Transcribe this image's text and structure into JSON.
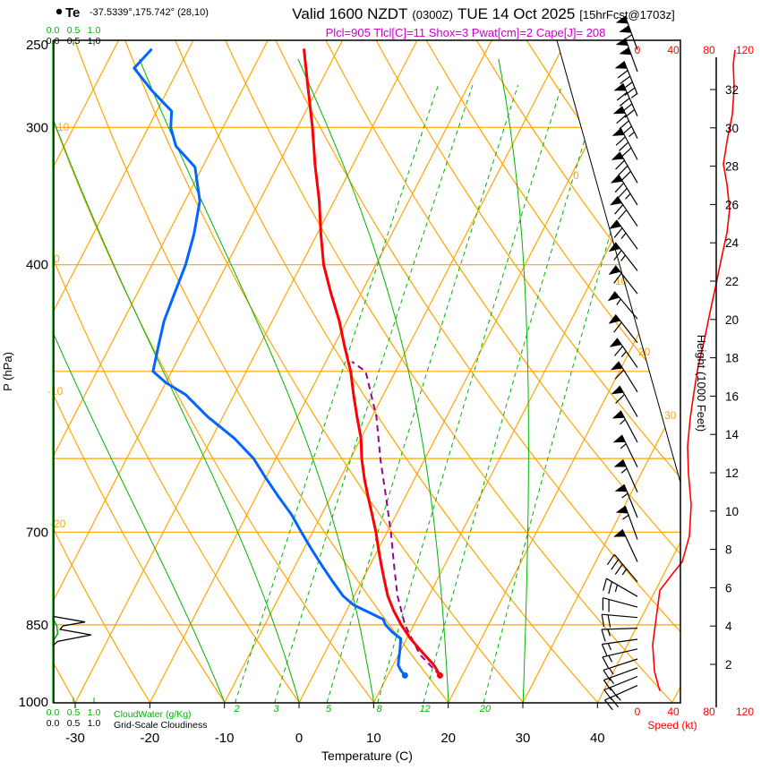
{
  "header": {
    "station": "Te",
    "coords": "-37.5339°,175.742° (28,10)",
    "title_valid": "Valid 1600 NZDT",
    "title_zulu": "(0300Z)",
    "title_date": "TUE 14 Oct 2025",
    "title_fcst": "[15hrFcst@1703z]",
    "params": "Plcl=905 Tlcl[C]=11 Shox=3 Pwat[cm]=2 Cape[J]= 208"
  },
  "colors": {
    "grid": "#FFA500",
    "moist": "#00B400",
    "temp": "#FF0000",
    "dewpoint": "#0066FF",
    "parcel": "#990099",
    "speed": "#FF0000",
    "params": "#CC00CC",
    "barb": "#000000"
  },
  "axes": {
    "pressure_label": "P (hPa)",
    "pressure_ticks": [
      "250",
      "300",
      "400",
      "700",
      "850",
      "1000"
    ],
    "pressure_grid": [
      300,
      400,
      500,
      600,
      700,
      850
    ],
    "temp_label": "Temperature (C)",
    "temp_ticks": [
      "-30",
      "-20",
      "-10",
      "0",
      "10",
      "20",
      "30",
      "40"
    ],
    "height_label": "Height (1000 Feet)",
    "height_ticks": [
      "2",
      "4",
      "6",
      "8",
      "10",
      "12",
      "14",
      "16",
      "18",
      "20",
      "22",
      "24",
      "26",
      "28",
      "30",
      "32"
    ],
    "speed_label": "Speed (kt)",
    "speed_ticks": [
      "0",
      "40",
      "80",
      "120"
    ],
    "cloudwater_label": "CloudWater (g/Kg)",
    "cloudiness_label": "Grid-Scale Cloudiness",
    "cloud_ticks": [
      "0.0",
      "0.5",
      "1.0"
    ]
  },
  "grid_labels": {
    "dry_adiabat_left": [
      "10",
      "0",
      "-10",
      "-20"
    ],
    "isotherm_right": [
      "0",
      "10",
      "20",
      "30"
    ],
    "mixing_ratio": [
      "2",
      "3",
      "5",
      "8",
      "12",
      "20"
    ]
  },
  "chart_data": {
    "type": "skewt_log_p_sounding",
    "pressure_unit": "hPa",
    "temp_unit": "C",
    "pressure_range": [
      1000,
      250
    ],
    "temp_axis_range_at_1000hpa": [
      -30,
      40
    ],
    "indices": {
      "plcl_hpa": 905,
      "tlcl_c": 11,
      "showalter": 3,
      "pwat_cm": 2,
      "cape_j": 208
    },
    "temperature_c": [
      [
        255,
        -44.5
      ],
      [
        275,
        -41.5
      ],
      [
        300,
        -38
      ],
      [
        325,
        -35
      ],
      [
        350,
        -32
      ],
      [
        375,
        -29.5
      ],
      [
        400,
        -27
      ],
      [
        425,
        -24
      ],
      [
        450,
        -21
      ],
      [
        475,
        -18.5
      ],
      [
        500,
        -16
      ],
      [
        525,
        -14
      ],
      [
        550,
        -12
      ],
      [
        575,
        -10
      ],
      [
        600,
        -8.5
      ],
      [
        625,
        -6.8
      ],
      [
        650,
        -5
      ],
      [
        675,
        -3.2
      ],
      [
        700,
        -1.5
      ],
      [
        725,
        0
      ],
      [
        750,
        1.5
      ],
      [
        775,
        3
      ],
      [
        800,
        4.5
      ],
      [
        825,
        6.3
      ],
      [
        850,
        8.3
      ],
      [
        875,
        10.5
      ],
      [
        900,
        13
      ],
      [
        925,
        15.5
      ],
      [
        945,
        17
      ]
    ],
    "dewpoint_c": [
      [
        255,
        -65
      ],
      [
        265,
        -66
      ],
      [
        278,
        -62
      ],
      [
        290,
        -58
      ],
      [
        300,
        -57
      ],
      [
        312,
        -55
      ],
      [
        326,
        -51
      ],
      [
        350,
        -48
      ],
      [
        375,
        -46.5
      ],
      [
        400,
        -45.5
      ],
      [
        425,
        -45
      ],
      [
        450,
        -44.5
      ],
      [
        475,
        -43.5
      ],
      [
        500,
        -42.5
      ],
      [
        512,
        -40
      ],
      [
        525,
        -36.5
      ],
      [
        550,
        -32
      ],
      [
        575,
        -27
      ],
      [
        600,
        -23
      ],
      [
        625,
        -20
      ],
      [
        650,
        -17
      ],
      [
        675,
        -14
      ],
      [
        700,
        -11.5
      ],
      [
        725,
        -9
      ],
      [
        750,
        -6.5
      ],
      [
        775,
        -4
      ],
      [
        800,
        -1.5
      ],
      [
        815,
        0.5
      ],
      [
        825,
        2.5
      ],
      [
        840,
        5.5
      ],
      [
        850,
        6.2
      ],
      [
        862,
        7.5
      ],
      [
        875,
        9.2
      ],
      [
        900,
        10
      ],
      [
        912,
        10.3
      ],
      [
        925,
        10.7
      ],
      [
        935,
        11.4
      ],
      [
        945,
        12.3
      ]
    ],
    "parcel_c": [
      [
        945,
        17
      ],
      [
        905,
        12.9
      ],
      [
        850,
        8.8
      ],
      [
        800,
        5.8
      ],
      [
        750,
        3.2
      ],
      [
        700,
        0.5
      ],
      [
        650,
        -2.6
      ],
      [
        600,
        -6
      ],
      [
        550,
        -9.4
      ],
      [
        500,
        -14
      ],
      [
        490,
        -16.5
      ]
    ],
    "moist_adiabats_c": [
      -10,
      0,
      10,
      20,
      30
    ],
    "cloudiness": [
      [
        835,
        0
      ],
      [
        845,
        0.8
      ],
      [
        852,
        0.25
      ],
      [
        858,
        0.18
      ],
      [
        868,
        0.95
      ],
      [
        880,
        0.12
      ],
      [
        888,
        0
      ]
    ],
    "cloudwater": [
      [
        838,
        0
      ],
      [
        852,
        0.1
      ],
      [
        866,
        0.12
      ],
      [
        880,
        0
      ]
    ],
    "speed_profile_kt": [
      [
        976,
        25
      ],
      [
        937,
        19
      ],
      [
        886,
        17
      ],
      [
        837,
        21
      ],
      [
        791,
        25
      ],
      [
        766,
        38
      ],
      [
        745,
        50
      ],
      [
        706,
        58
      ],
      [
        661,
        60
      ],
      [
        619,
        57
      ],
      [
        585,
        56
      ],
      [
        551,
        59
      ],
      [
        523,
        63
      ],
      [
        494,
        68
      ],
      [
        467,
        75
      ],
      [
        442,
        81
      ],
      [
        416,
        88
      ],
      [
        394,
        94
      ],
      [
        374,
        100
      ],
      [
        356,
        103
      ],
      [
        338,
        100
      ],
      [
        324,
        96
      ],
      [
        309,
        100
      ],
      [
        292,
        106
      ],
      [
        276,
        108
      ],
      [
        263,
        107
      ],
      [
        255,
        109
      ]
    ],
    "wind_barbs": [
      [
        255,
        105,
        340
      ],
      [
        267,
        100,
        340
      ],
      [
        280,
        95,
        338
      ],
      [
        293,
        92,
        336
      ],
      [
        307,
        88,
        334
      ],
      [
        321,
        84,
        332
      ],
      [
        337,
        80,
        330
      ],
      [
        353,
        75,
        328
      ],
      [
        369,
        70,
        326
      ],
      [
        387,
        66,
        324
      ],
      [
        405,
        65,
        322
      ],
      [
        425,
        62,
        322
      ],
      [
        448,
        58,
        320
      ],
      [
        471,
        60,
        322
      ],
      [
        496,
        65,
        325
      ],
      [
        522,
        63,
        328
      ],
      [
        550,
        60,
        330
      ],
      [
        580,
        58,
        332
      ],
      [
        611,
        58,
        334
      ],
      [
        644,
        57,
        336
      ],
      [
        679,
        58,
        338
      ],
      [
        711,
        55,
        340
      ],
      [
        745,
        50,
        335
      ],
      [
        777,
        38,
        320
      ],
      [
        801,
        28,
        300
      ],
      [
        819,
        22,
        285
      ],
      [
        837,
        21,
        275
      ],
      [
        856,
        18,
        268
      ],
      [
        876,
        17,
        262
      ],
      [
        894,
        17,
        257
      ],
      [
        913,
        18,
        252
      ],
      [
        930,
        19,
        250
      ],
      [
        947,
        22,
        248
      ],
      [
        965,
        25,
        246
      ]
    ]
  }
}
